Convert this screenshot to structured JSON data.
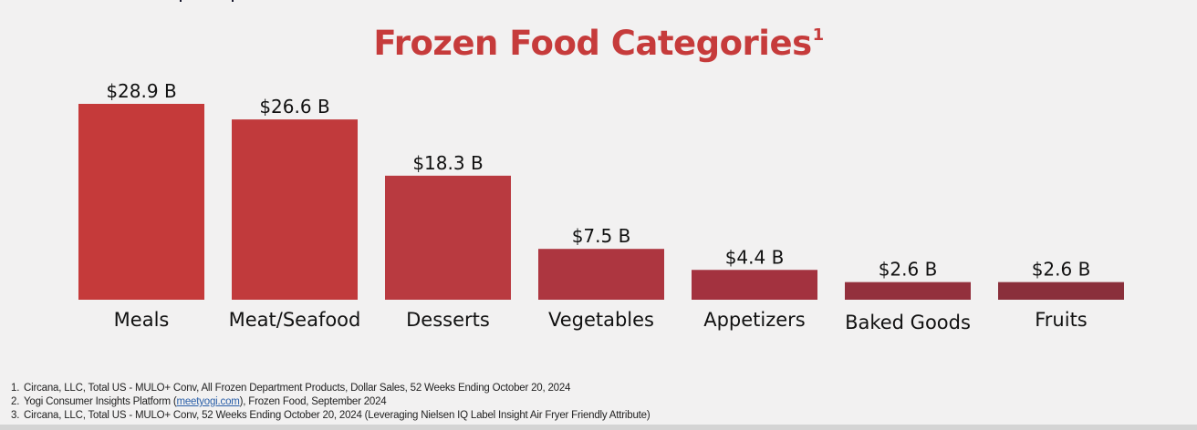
{
  "chart_data": {
    "type": "bar",
    "title": "Frozen Food Categories",
    "title_superscript": "1",
    "xlabel": "",
    "ylabel": "",
    "ylim": [
      0,
      28.9
    ],
    "grid": false,
    "legend": "none",
    "unit_prefix": "$",
    "unit_suffix": " B",
    "categories": [
      "Meals",
      "Meat/Seafood",
      "Desserts",
      "Vegetables",
      "Appetizers",
      "Baked Goods",
      "Fruits"
    ],
    "values": [
      28.9,
      26.6,
      18.3,
      7.5,
      4.4,
      2.6,
      2.6
    ],
    "data_labels": [
      "$28.9 B",
      "$26.6 B",
      "$18.3 B",
      "$7.5 B",
      "$4.4 B",
      "$2.6 B",
      "$2.6 B"
    ],
    "colors": [
      "#c53a3a",
      "#c13a3c",
      "#b93a40",
      "#ad3640",
      "#a3323f",
      "#93303d",
      "#8a2f3b"
    ]
  },
  "footnotes": [
    {
      "number": "1.",
      "text": "Circana, LLC, Total US - MULO+ Conv, All Frozen Department Products, Dollar Sales, 52 Weeks Ending October 20, 2024"
    },
    {
      "number": "2.",
      "text_before": "Yogi Consumer Insights Platform (",
      "link": "meetyogi.com",
      "text_after": "), Frozen Food, September 2024"
    },
    {
      "number": "3.",
      "text": "Circana, LLC, Total US - MULO+ Conv, 52 Weeks Ending October 20, 2024 (Leveraging Nielsen IQ Label Insight Air Fryer Friendly Attribute)"
    }
  ]
}
